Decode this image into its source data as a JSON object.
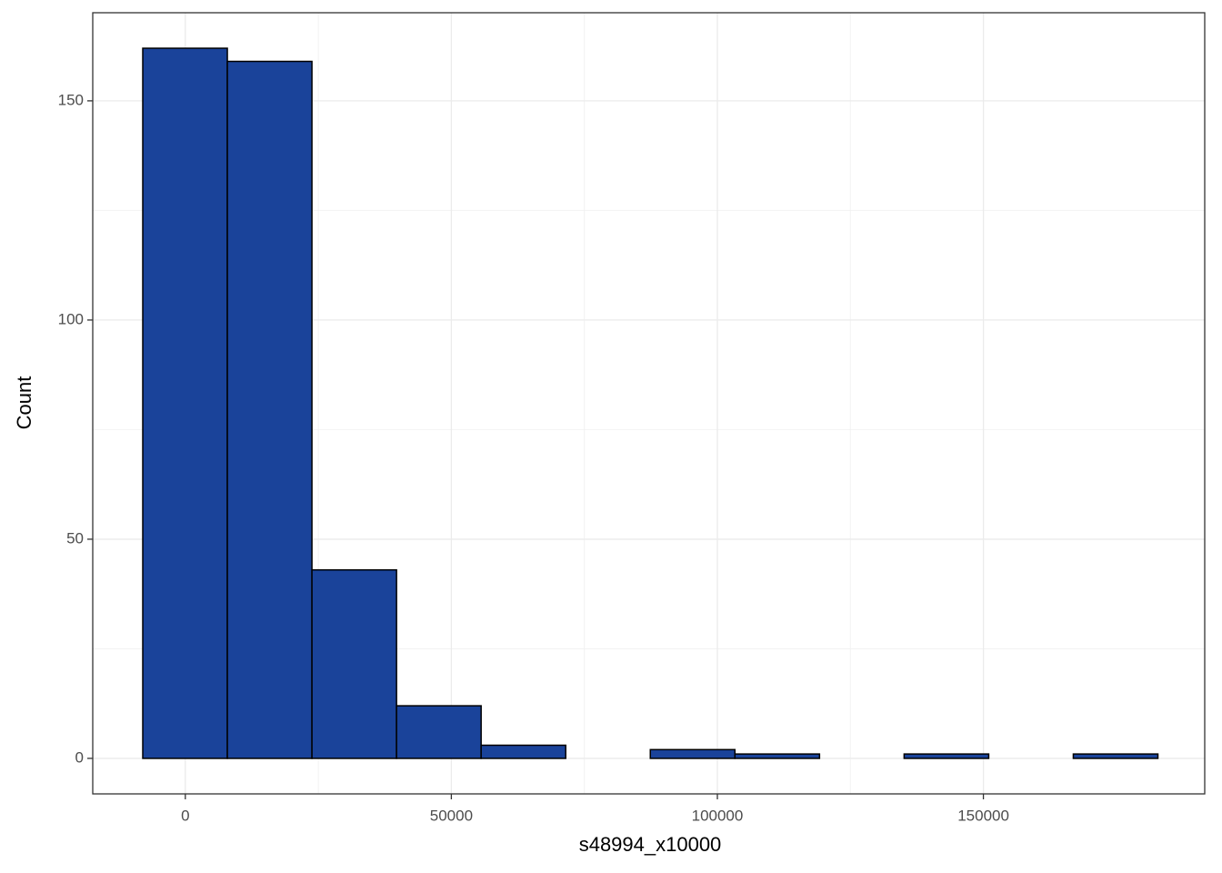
{
  "chart_data": {
    "type": "histogram",
    "x_label": "s48994_x10000",
    "y_label": "Count",
    "bins": [
      -8000,
      7900,
      23800,
      39700,
      55600,
      71500,
      87400,
      103300,
      119200,
      135100,
      151000,
      166900,
      182800
    ],
    "counts": [
      162,
      159,
      43,
      12,
      3,
      0,
      2,
      1,
      0,
      1,
      0,
      1
    ],
    "color": "#1a439a",
    "edge_color": "#000000",
    "xlim": [
      -17400,
      191600
    ],
    "ylim": [
      -8.1,
      170.1
    ],
    "xticks": [
      0,
      50000,
      100000,
      150000
    ],
    "yticks": [
      0,
      50,
      100,
      150
    ],
    "grid": true
  }
}
